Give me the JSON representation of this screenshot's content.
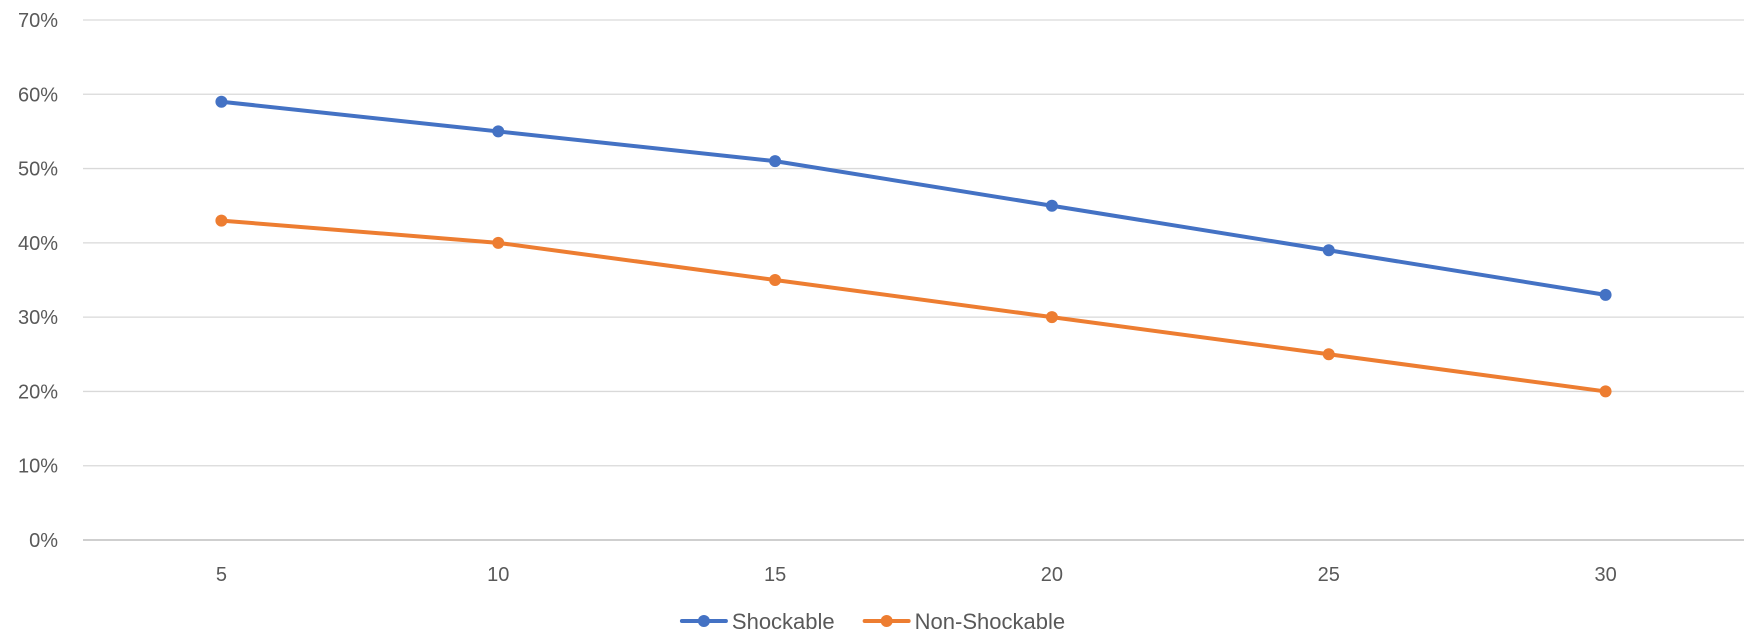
{
  "chart_data": {
    "type": "line",
    "title": "",
    "xlabel": "",
    "ylabel": "",
    "categories": [
      "5",
      "10",
      "15",
      "20",
      "25",
      "30"
    ],
    "y_ticks": [
      "0%",
      "10%",
      "20%",
      "30%",
      "40%",
      "50%",
      "60%",
      "70%"
    ],
    "ylim": [
      0,
      70
    ],
    "y_unit": "%",
    "grid": true,
    "legend_position": "bottom",
    "series": [
      {
        "name": "Shockable",
        "color": "#4472C4",
        "values": [
          59,
          55,
          51,
          45,
          39,
          33
        ]
      },
      {
        "name": "Non-Shockable",
        "color": "#ED7D31",
        "values": [
          43,
          40,
          35,
          30,
          25,
          20
        ]
      }
    ]
  }
}
